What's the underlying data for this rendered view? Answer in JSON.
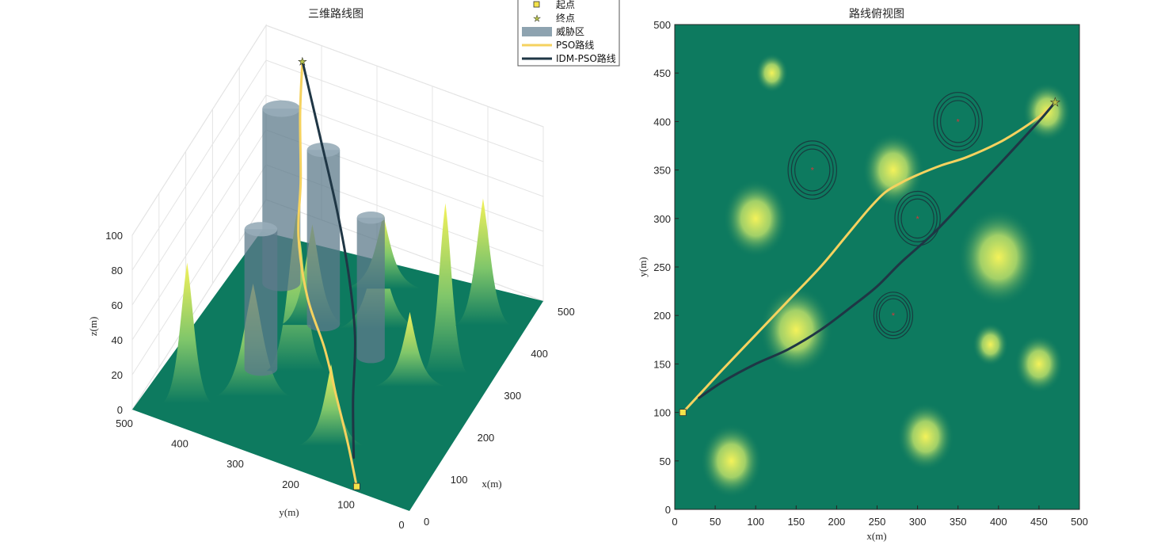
{
  "chart_data": [
    {
      "type": "surface3d",
      "title": "三维路线图",
      "xlabel": "x(m)",
      "ylabel": "y(m)",
      "zlabel": "z(m)",
      "xlim": [
        0,
        500
      ],
      "ylim": [
        0,
        500
      ],
      "zlim": [
        0,
        100
      ],
      "xticks": [
        "0",
        "100",
        "200",
        "300",
        "400",
        "500"
      ],
      "yticks": [
        "0",
        "100",
        "200",
        "300",
        "400",
        "500"
      ],
      "zticks": [
        "0",
        "20",
        "40",
        "60",
        "80",
        "100"
      ],
      "colors": {
        "low": "#0d7a5f",
        "high": "#f4f25a"
      },
      "grid": true
    },
    {
      "type": "line",
      "title": "路线俯视图",
      "xlabel": "x(m)",
      "ylabel": "y(m)",
      "xlim": [
        0,
        500
      ],
      "ylim": [
        0,
        500
      ],
      "xticks": [
        "0",
        "50",
        "100",
        "150",
        "200",
        "250",
        "300",
        "350",
        "400",
        "450",
        "500"
      ],
      "yticks": [
        "0",
        "50",
        "100",
        "150",
        "200",
        "250",
        "300",
        "350",
        "400",
        "450",
        "500"
      ],
      "hills": [
        {
          "x": 100,
          "y": 300,
          "r": 40
        },
        {
          "x": 120,
          "y": 450,
          "r": 20
        },
        {
          "x": 70,
          "y": 50,
          "r": 38
        },
        {
          "x": 270,
          "y": 350,
          "r": 38
        },
        {
          "x": 390,
          "y": 170,
          "r": 22
        },
        {
          "x": 450,
          "y": 150,
          "r": 30
        },
        {
          "x": 150,
          "y": 185,
          "r": 45
        },
        {
          "x": 310,
          "y": 75,
          "r": 35
        },
        {
          "x": 400,
          "y": 260,
          "r": 50
        },
        {
          "x": 460,
          "y": 410,
          "r": 30
        }
      ],
      "threats": [
        {
          "x": 170,
          "y": 350,
          "r": 30
        },
        {
          "x": 350,
          "y": 400,
          "r": 30
        },
        {
          "x": 300,
          "y": 300,
          "r": 28
        },
        {
          "x": 270,
          "y": 200,
          "r": 24
        }
      ],
      "start": {
        "x": 10,
        "y": 100
      },
      "goal": {
        "x": 470,
        "y": 420
      },
      "series": [
        {
          "name": "PSO路线",
          "color": "#f5d25f",
          "x": [
            10,
            30,
            60,
            100,
            140,
            180,
            210,
            240,
            260,
            280,
            300,
            330,
            360,
            400,
            430,
            455,
            470
          ],
          "y": [
            100,
            118,
            145,
            180,
            215,
            250,
            280,
            310,
            327,
            337,
            345,
            355,
            363,
            378,
            393,
            408,
            420
          ]
        },
        {
          "name": "IDM-PSO路线",
          "color": "#1f3645",
          "x": [
            30,
            60,
            100,
            140,
            180,
            220,
            250,
            280,
            320,
            360,
            400,
            430,
            455,
            470
          ],
          "y": [
            115,
            132,
            150,
            165,
            185,
            210,
            230,
            255,
            285,
            320,
            355,
            382,
            405,
            420
          ]
        }
      ]
    }
  ],
  "legend": {
    "items": [
      {
        "label": "起点",
        "kind": "start-marker"
      },
      {
        "label": "终点",
        "kind": "goal-marker"
      },
      {
        "label": "威胁区",
        "kind": "threat-patch",
        "color": "#8ea3b0"
      },
      {
        "label": "PSO路线",
        "kind": "line",
        "color": "#f5d25f"
      },
      {
        "label": "IDM-PSO路线",
        "kind": "line",
        "color": "#1f3645"
      }
    ]
  }
}
